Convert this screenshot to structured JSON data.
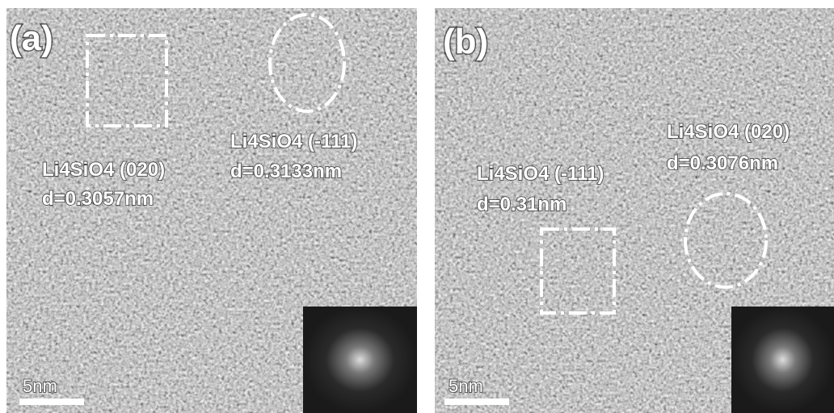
{
  "panels": [
    {
      "label": "(a)",
      "annotations": [
        {
          "phase": "Li4SiO4 (020)",
          "spacing": "d=0.3057nm"
        },
        {
          "phase": "Li4SiO4 (-111)",
          "spacing": "d=0.3133nm"
        }
      ],
      "scale_bar": "5nm"
    },
    {
      "label": "(b)",
      "annotations": [
        {
          "phase": "Li4SiO4 (-111)",
          "spacing": "d=0.31nm"
        },
        {
          "phase": "Li4SiO4 (020)",
          "spacing": "d=0.3076nm"
        }
      ],
      "scale_bar": "5nm"
    }
  ]
}
